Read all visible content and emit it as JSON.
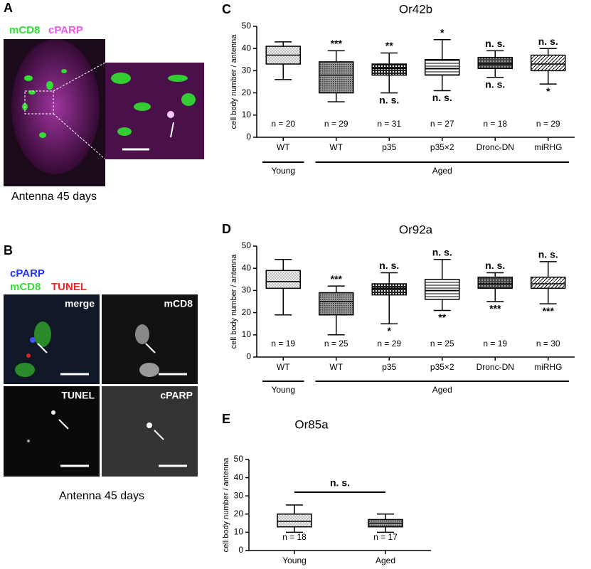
{
  "panels": {
    "A": {
      "letter": "A",
      "stain1": "mCD8",
      "stain2": "cPARP",
      "caption": "Antenna 45 days"
    },
    "B": {
      "letter": "B",
      "stain_blue": "cPARP",
      "stain_green": "mCD8",
      "stain_red": "TUNEL",
      "tiles": [
        "merge",
        "mCD8",
        "TUNEL",
        "cPARP"
      ],
      "caption": "Antenna 45 days"
    }
  },
  "chart_data": [
    {
      "type": "box",
      "letter": "C",
      "title": "Or42b",
      "ylabel": "cell body number / antenna",
      "categories": [
        "WT",
        "WT",
        "p35",
        "p35×2",
        "Dronc-DN",
        "miRHG"
      ],
      "groups": [
        {
          "label": "Young",
          "count": 1
        },
        {
          "label": "Aged",
          "count": 5
        }
      ],
      "whisker_low": [
        26,
        16,
        20,
        21,
        27,
        24
      ],
      "q1": [
        33,
        20,
        28,
        28,
        31,
        30
      ],
      "median": [
        37,
        28,
        31,
        31,
        33,
        33
      ],
      "q3": [
        41,
        34,
        33,
        35,
        36,
        37
      ],
      "whisker_high": [
        43,
        39,
        38,
        44,
        39,
        40
      ],
      "n_labels": [
        "n = 20",
        "n = 29",
        "n = 31",
        "n = 27",
        "n = 18",
        "n = 29"
      ],
      "sig_above": [
        null,
        "***",
        "**",
        "*",
        "n. s.",
        "n. s."
      ],
      "sig_below": [
        null,
        null,
        "n. s.",
        "n. s.",
        "n. s.",
        "*"
      ],
      "ylim": [
        0,
        50
      ],
      "yticks": [
        0,
        10,
        20,
        30,
        40,
        50
      ]
    },
    {
      "type": "box",
      "letter": "D",
      "title": "Or92a",
      "ylabel": "cell body number / antenna",
      "categories": [
        "WT",
        "WT",
        "p35",
        "p35×2",
        "Dronc-DN",
        "miRHG"
      ],
      "groups": [
        {
          "label": "Young",
          "count": 1
        },
        {
          "label": "Aged",
          "count": 5
        }
      ],
      "whisker_low": [
        19,
        10,
        15,
        21,
        25,
        24
      ],
      "q1": [
        31,
        19,
        28,
        26,
        31,
        31
      ],
      "median": [
        34,
        25,
        31,
        30,
        33,
        33
      ],
      "q3": [
        39,
        29,
        33,
        35,
        36,
        36
      ],
      "whisker_high": [
        44,
        32,
        38,
        44,
        38,
        43
      ],
      "n_labels": [
        "n = 19",
        "n = 25",
        "n = 29",
        "n = 25",
        "n = 19",
        "n = 30"
      ],
      "sig_above": [
        null,
        "***",
        "n. s.",
        "n. s.",
        "n. s.",
        "n. s."
      ],
      "sig_below": [
        null,
        null,
        "*",
        "**",
        "***",
        "***"
      ],
      "ylim": [
        0,
        50
      ],
      "yticks": [
        0,
        10,
        20,
        30,
        40,
        50
      ]
    },
    {
      "type": "box",
      "letter": "E",
      "title": "Or85a",
      "ylabel": "cell body number / antenna",
      "categories": [
        "Young",
        "Aged"
      ],
      "whisker_low": [
        10,
        10
      ],
      "q1": [
        13,
        13
      ],
      "median": [
        16,
        15
      ],
      "q3": [
        20,
        17
      ],
      "whisker_high": [
        25,
        20
      ],
      "n_labels": [
        "n = 18",
        "n = 17"
      ],
      "bracket_label": "n. s.",
      "ylim": [
        0,
        50
      ],
      "yticks": [
        0,
        10,
        20,
        30,
        40,
        50
      ]
    }
  ]
}
